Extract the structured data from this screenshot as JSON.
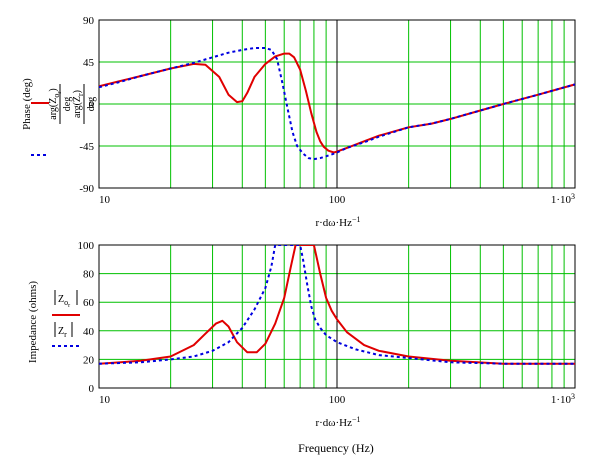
{
  "xaxis": {
    "ticks": [
      {
        "value": 10,
        "label": "10"
      },
      {
        "value": 100,
        "label": "100"
      },
      {
        "value": 1000,
        "label": "1·10",
        "sup": "3"
      }
    ],
    "var": {
      "main": "r·dω·Hz",
      "sup": "−1"
    },
    "title": "Frequency (Hz)"
  },
  "legend": {
    "phase_s1": {
      "num": "arg(Z",
      "sub": "o",
      "subsub": "r",
      "close": ")",
      "den": "deg"
    },
    "phase_s2": {
      "num": "arg(Z",
      "sub": "r",
      "close": ")",
      "den": "deg"
    },
    "imp_s1": {
      "name": "Z",
      "sub": "o",
      "subsub": "r"
    },
    "imp_s2": {
      "name": "Z",
      "sub": "r"
    }
  },
  "colors": {
    "series1": "#e00000",
    "series2": "#0000e0",
    "grid_major": "#000000",
    "grid_minor": "#00c000"
  },
  "chart_data": [
    {
      "type": "line",
      "ylabel": "Phase (deg)",
      "xscale": "log",
      "xlim": [
        10,
        1000
      ],
      "ylim": [
        -90,
        90
      ],
      "yticks": [
        90,
        45,
        0,
        -45,
        -90
      ],
      "grid": true,
      "series": [
        {
          "name": "arg(Z_o_r)/deg",
          "style": "solid",
          "color": "#e00000",
          "x": [
            10,
            12,
            15,
            20,
            25,
            28,
            32,
            35,
            38,
            40,
            42,
            45,
            50,
            55,
            60,
            63,
            66,
            70,
            74,
            78,
            82,
            85,
            88,
            92,
            97,
            100,
            110,
            130,
            150,
            200,
            250,
            300,
            400,
            500,
            700,
            1000
          ],
          "y": [
            19,
            24,
            30,
            38,
            43,
            42,
            29,
            10,
            2,
            3,
            12,
            29,
            43,
            51,
            54,
            54,
            50,
            37,
            14,
            -10,
            -30,
            -40,
            -46,
            -50,
            -52,
            -51,
            -47,
            -40,
            -34,
            -25,
            -21,
            -16,
            -7,
            0,
            10,
            21
          ]
        },
        {
          "name": "arg(Z_r)/deg",
          "style": "dashed",
          "color": "#0000e0",
          "x": [
            10,
            12,
            15,
            20,
            25,
            30,
            35,
            40,
            45,
            50,
            53,
            56,
            59,
            62,
            65,
            68,
            72,
            76,
            80,
            85,
            90,
            95,
            100,
            110,
            130,
            150,
            200,
            250,
            300,
            400,
            500,
            700,
            1000
          ],
          "y": [
            18,
            23,
            30,
            38,
            44,
            50,
            55,
            58,
            60,
            60,
            58,
            48,
            22,
            -5,
            -30,
            -45,
            -53,
            -58,
            -59,
            -58,
            -56,
            -54,
            -52,
            -47,
            -41,
            -35,
            -25,
            -21,
            -16,
            -7,
            0,
            10,
            21
          ]
        }
      ]
    },
    {
      "type": "line",
      "ylabel": "Impedance (ohms)",
      "xscale": "log",
      "xlim": [
        10,
        1000
      ],
      "ylim": [
        0,
        100
      ],
      "yticks": [
        100,
        80,
        60,
        40,
        20,
        0
      ],
      "grid": true,
      "series": [
        {
          "name": "|Z_o_r|",
          "style": "solid",
          "color": "#e00000",
          "x": [
            10,
            15,
            20,
            25,
            28,
            31,
            33,
            35,
            38,
            42,
            46,
            50,
            55,
            60,
            64,
            67,
            70,
            74,
            80,
            85,
            90,
            95,
            100,
            110,
            130,
            150,
            200,
            300,
            500,
            1000
          ],
          "y": [
            17,
            19,
            22,
            30,
            38,
            45,
            47,
            43,
            32,
            25,
            25,
            31,
            45,
            63,
            85,
            100,
            100,
            100,
            100,
            80,
            63,
            54,
            48,
            39,
            30,
            26,
            22,
            19,
            17,
            17
          ]
        },
        {
          "name": "|Z_r|",
          "style": "dashed",
          "color": "#0000e0",
          "x": [
            10,
            15,
            20,
            25,
            30,
            35,
            40,
            45,
            50,
            53,
            55,
            58,
            61,
            64,
            66,
            68,
            70,
            72,
            75,
            78,
            81,
            85,
            90,
            100,
            120,
            150,
            200,
            300,
            500,
            1000
          ],
          "y": [
            17,
            18,
            20,
            22,
            26,
            32,
            42,
            55,
            70,
            85,
            100,
            100,
            100,
            100,
            100,
            100,
            100,
            90,
            72,
            57,
            48,
            42,
            37,
            32,
            27,
            23,
            21,
            18,
            17,
            17
          ]
        }
      ]
    }
  ]
}
